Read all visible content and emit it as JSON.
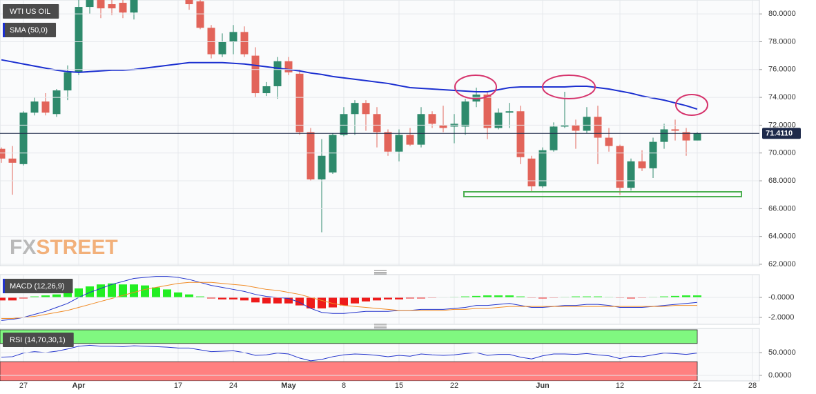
{
  "chart_data": [
    {
      "type": "candlestick",
      "title": "WTI US OIL",
      "watermark": [
        "FX",
        "STREET"
      ],
      "up_color": "#2e8a6c",
      "down_color": "#e2645a",
      "categories": [
        null,
        null,
        "27",
        null,
        null,
        null,
        null,
        "Apr",
        null,
        null,
        null,
        null,
        null,
        null,
        null,
        null,
        "17",
        null,
        null,
        null,
        null,
        "24",
        null,
        null,
        null,
        null,
        "May",
        null,
        null,
        null,
        null,
        "8",
        null,
        null,
        null,
        null,
        "15",
        null,
        null,
        null,
        null,
        "22",
        null,
        null,
        null,
        null,
        null,
        null,
        null,
        "Jun",
        null,
        null,
        null,
        null,
        null,
        null,
        "12",
        null,
        null,
        null,
        null,
        null,
        null,
        "21",
        null,
        null,
        null,
        null,
        "28"
      ],
      "open": [
        70.3,
        69.6,
        69.2,
        72.9,
        73.7,
        72.8,
        74.5,
        75.8,
        80.5,
        81.5,
        80.7,
        80.8,
        80.1,
        null,
        null,
        null,
        null,
        81.0,
        80.9,
        79.0,
        77.1,
        78.0,
        78.7,
        77.0,
        74.3,
        74.8,
        76.6,
        75.7,
        71.5,
        68.1,
        68.6,
        71.3,
        72.8,
        73.6,
        72.8,
        71.5,
        70.1,
        71.3,
        70.6,
        72.8,
        72.0,
        71.9,
        71.9,
        73.7,
        74.2,
        71.8,
        72.9,
        73.0,
        69.6,
        67.6,
        70.2,
        71.9,
        72.0,
        71.6,
        72.6,
        71.1,
        70.5,
        67.5,
        69.4,
        68.9,
        70.8,
        71.7,
        71.5,
        70.9,
        null,
        null,
        null,
        null,
        null
      ],
      "high": [
        70.4,
        70.5,
        73.0,
        74.0,
        74.3,
        74.6,
        76.3,
        81.2,
        81.5,
        81.8,
        81.2,
        81.3,
        81.5,
        null,
        null,
        null,
        null,
        81.2,
        81.0,
        79.2,
        78.6,
        79.2,
        79.1,
        77.6,
        75.1,
        76.9,
        76.9,
        76.0,
        71.8,
        71.0,
        71.4,
        73.3,
        73.8,
        73.8,
        73.3,
        71.7,
        71.7,
        71.8,
        73.3,
        73.0,
        73.4,
        72.8,
        73.9,
        74.7,
        74.4,
        73.2,
        73.6,
        73.4,
        69.8,
        70.4,
        72.2,
        74.4,
        72.4,
        73.3,
        73.4,
        71.8,
        70.6,
        69.6,
        70.2,
        71.1,
        72.1,
        72.4,
        71.8,
        71.5,
        null,
        null,
        null,
        null,
        null
      ],
      "low": [
        69.3,
        67.0,
        69.1,
        72.7,
        72.7,
        72.6,
        73.8,
        75.6,
        80.0,
        79.7,
        79.9,
        79.7,
        79.6,
        null,
        null,
        null,
        null,
        80.3,
        78.9,
        76.8,
        76.9,
        77.1,
        76.9,
        74.0,
        74.1,
        73.9,
        75.6,
        71.3,
        68.0,
        64.3,
        68.5,
        71.2,
        71.3,
        71.6,
        70.4,
        69.8,
        69.4,
        70.5,
        70.4,
        71.8,
        71.5,
        70.7,
        71.3,
        73.3,
        71.0,
        71.7,
        71.8,
        69.2,
        67.2,
        67.5,
        70.1,
        71.8,
        70.3,
        71.4,
        69.2,
        70.1,
        67.0,
        67.3,
        68.7,
        68.2,
        70.3,
        70.9,
        69.8,
        70.9,
        null,
        null,
        null,
        null,
        null
      ],
      "close": [
        69.6,
        69.3,
        72.9,
        73.7,
        72.9,
        74.5,
        75.8,
        80.5,
        81.2,
        80.4,
        80.4,
        80.1,
        81.3,
        null,
        null,
        null,
        null,
        80.7,
        79.0,
        77.1,
        78.0,
        78.7,
        77.1,
        74.3,
        74.8,
        76.6,
        75.8,
        71.5,
        68.1,
        69.8,
        71.3,
        72.8,
        73.6,
        72.8,
        71.5,
        70.1,
        71.3,
        70.6,
        72.8,
        72.1,
        71.8,
        72.1,
        73.7,
        74.2,
        71.8,
        72.9,
        73.0,
        69.7,
        67.6,
        70.2,
        71.9,
        72.0,
        71.6,
        72.6,
        71.1,
        70.5,
        67.5,
        69.4,
        68.9,
        70.8,
        71.7,
        71.6,
        70.9,
        71.41,
        null,
        null,
        null,
        null,
        null
      ],
      "series": [
        {
          "name": "SMA (50,0)",
          "color": "#1b2fd0",
          "values": [
            76.7,
            76.55,
            76.4,
            76.25,
            76.1,
            75.95,
            75.85,
            75.8,
            75.85,
            75.9,
            75.95,
            75.95,
            76.0,
            76.1,
            76.2,
            76.3,
            76.4,
            76.5,
            76.5,
            76.5,
            76.5,
            76.45,
            76.4,
            76.3,
            76.2,
            76.1,
            76.0,
            75.9,
            75.75,
            75.65,
            75.5,
            75.4,
            75.3,
            75.2,
            75.1,
            75.0,
            74.85,
            74.7,
            74.65,
            74.6,
            74.55,
            74.5,
            74.45,
            74.4,
            74.4,
            74.55,
            74.7,
            74.75,
            74.75,
            74.75,
            74.75,
            74.75,
            74.8,
            74.8,
            74.7,
            74.6,
            74.45,
            74.3,
            74.1,
            73.95,
            73.8,
            73.6,
            73.4,
            73.15,
            null,
            null,
            null,
            null,
            null
          ]
        }
      ],
      "last_price": {
        "value": 71.411,
        "label": "71.4110"
      },
      "ylim": [
        61.9,
        81.0
      ],
      "yticks": [
        {
          "value": 62,
          "label": "62.0000"
        },
        {
          "value": 64,
          "label": "64.0000"
        },
        {
          "value": 66,
          "label": "66.0000"
        },
        {
          "value": 68,
          "label": "68.0000"
        },
        {
          "value": 70,
          "label": "70.0000"
        },
        {
          "value": 72,
          "label": "72.0000"
        },
        {
          "value": 74,
          "label": "74.0000"
        },
        {
          "value": 76,
          "label": "76.0000"
        },
        {
          "value": 78,
          "label": "78.0000"
        },
        {
          "value": 80,
          "label": "80.0000"
        }
      ],
      "grid": true
    },
    {
      "type": "macd",
      "title": "MACD (12,26,9)",
      "up_color": "#22ee22",
      "down_color": "#ee1a1a",
      "histogram": [
        -0.3,
        -0.3,
        -0.1,
        0.1,
        0.2,
        0.3,
        0.5,
        0.9,
        1.1,
        1.3,
        1.4,
        1.3,
        1.3,
        1.2,
        1.0,
        0.8,
        0.5,
        0.3,
        0.1,
        -0.1,
        -0.2,
        -0.2,
        -0.3,
        -0.5,
        -0.6,
        -0.6,
        -0.6,
        -0.8,
        -1.1,
        -1.1,
        -1.0,
        -0.8,
        -0.6,
        -0.4,
        -0.3,
        -0.2,
        -0.2,
        -0.1,
        -0.1,
        -0.05,
        0.0,
        0.05,
        0.1,
        0.15,
        0.2,
        0.2,
        0.2,
        0.1,
        -0.05,
        -0.1,
        -0.05,
        0.05,
        0.1,
        0.1,
        0.1,
        0.05,
        -0.05,
        -0.1,
        -0.05,
        0.05,
        0.1,
        0.15,
        0.2,
        0.2,
        null,
        null,
        null,
        null,
        null
      ],
      "series": [
        {
          "color": "#2233cc",
          "values": [
            -2.3,
            -2.2,
            -2.0,
            -1.7,
            -1.4,
            -1.0,
            -0.6,
            0.0,
            0.5,
            0.9,
            1.3,
            1.6,
            1.9,
            2.0,
            2.1,
            2.1,
            2.0,
            1.8,
            1.5,
            1.2,
            1.0,
            0.8,
            0.6,
            0.3,
            0.1,
            0.0,
            -0.1,
            -0.5,
            -1.1,
            -1.5,
            -1.6,
            -1.6,
            -1.5,
            -1.4,
            -1.4,
            -1.4,
            -1.3,
            -1.3,
            -1.2,
            -1.2,
            -1.2,
            -1.1,
            -1.0,
            -0.8,
            -0.8,
            -0.7,
            -0.6,
            -0.8,
            -1.0,
            -1.0,
            -0.9,
            -0.8,
            -0.8,
            -0.7,
            -0.7,
            -0.8,
            -1.0,
            -1.0,
            -1.0,
            -0.9,
            -0.8,
            -0.7,
            -0.6,
            -0.5,
            null,
            null,
            null,
            null,
            null
          ]
        },
        {
          "color": "#f08a24",
          "values": [
            -2.1,
            -2.1,
            -2.0,
            -1.9,
            -1.7,
            -1.5,
            -1.3,
            -1.0,
            -0.7,
            -0.4,
            -0.1,
            0.2,
            0.5,
            0.8,
            1.0,
            1.2,
            1.4,
            1.5,
            1.5,
            1.5,
            1.4,
            1.3,
            1.2,
            1.0,
            0.8,
            0.7,
            0.5,
            0.3,
            0.0,
            -0.3,
            -0.6,
            -0.8,
            -0.9,
            -1.0,
            -1.1,
            -1.2,
            -1.3,
            -1.3,
            -1.3,
            -1.3,
            -1.3,
            -1.2,
            -1.2,
            -1.1,
            -1.1,
            -1.0,
            -0.9,
            -0.9,
            -0.9,
            -0.9,
            -0.9,
            -0.9,
            -0.9,
            -0.9,
            -0.9,
            -0.9,
            -0.9,
            -0.9,
            -0.9,
            -0.9,
            -0.9,
            -0.8,
            -0.8,
            -0.8,
            null,
            null,
            null,
            null,
            null
          ]
        }
      ],
      "ylim": [
        -2.69,
        2.28
      ],
      "yticks": [
        {
          "value": 0,
          "label": "-0.0000"
        },
        {
          "value": -2,
          "label": "-2.0000"
        }
      ],
      "grid": true
    },
    {
      "type": "rsi",
      "title": "RSI (14,70,30,1)",
      "bands": [
        {
          "range": [
            70,
            100
          ],
          "color": "#80f880"
        },
        {
          "range": [
            -12.1,
            30
          ],
          "color": "#ff8080"
        }
      ],
      "series": [
        {
          "color": "#2233cc",
          "values": [
            40,
            41,
            49,
            52,
            50,
            53,
            58,
            64,
            66,
            64,
            64,
            63,
            65,
            64,
            63,
            62,
            60,
            60,
            56,
            52,
            53,
            54,
            50,
            44,
            45,
            49,
            47,
            38,
            32,
            35,
            41,
            45,
            47,
            46,
            44,
            41,
            44,
            42,
            47,
            45,
            44,
            45,
            48,
            50,
            44,
            46,
            46,
            40,
            36,
            43,
            47,
            47,
            46,
            48,
            45,
            43,
            37,
            42,
            41,
            45,
            49,
            48,
            46,
            49,
            null,
            null,
            null,
            null,
            null
          ]
        }
      ],
      "ylim": [
        -12.1,
        103
      ],
      "yticks": [
        {
          "value": 50,
          "label": "50.0000"
        },
        {
          "value": 0,
          "label": "0.0000"
        }
      ],
      "grid": true
    }
  ]
}
